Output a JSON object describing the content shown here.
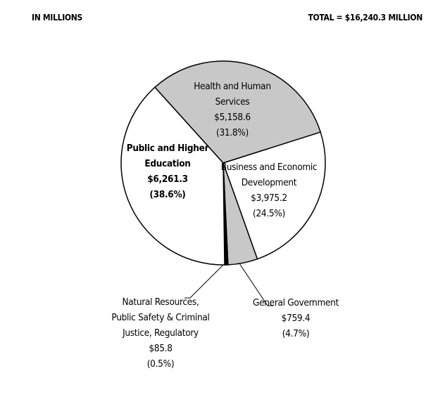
{
  "chart_data": {
    "type": "pie",
    "subtitle": "IN MILLIONS",
    "total_label": "TOTAL = $16,240.3 MILLION",
    "categories": [
      "Health and Human Services",
      "Business and Economic Development",
      "General Government",
      "Natural Resources, Public Safety & Criminal Justice, Regulatory",
      "Public and Higher Education"
    ],
    "values": [
      5158.6,
      3975.2,
      759.4,
      85.8,
      6261.3
    ],
    "value_labels": [
      "$5,158.6",
      "$3,975.2",
      "$759.4",
      "$85.8",
      "$6,261.3"
    ],
    "percents": [
      31.8,
      24.5,
      4.7,
      0.5,
      38.6
    ],
    "percent_labels": [
      "(31.8%)",
      "(24.5%)",
      "(4.7%)",
      "(0.5%)",
      "(38.6%)"
    ],
    "colors": [
      "#c8c8c8",
      "#ffffff",
      "#c8c8c8",
      "#000000",
      "#ffffff"
    ]
  }
}
